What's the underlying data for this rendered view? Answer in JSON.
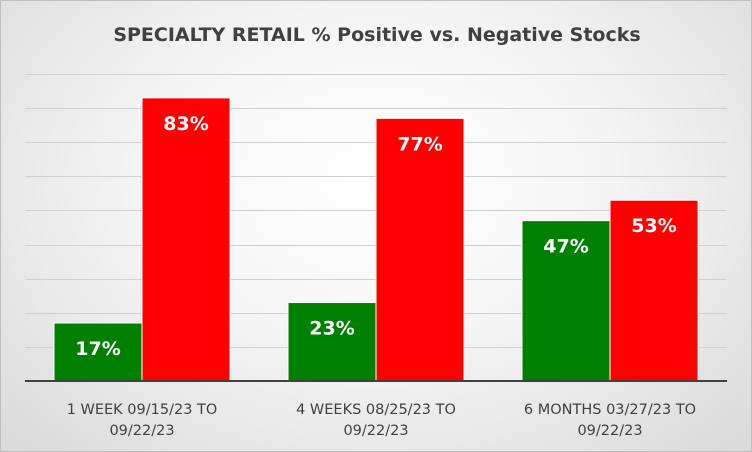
{
  "chart_data": {
    "type": "bar",
    "title": "SPECIALTY RETAIL % Positive vs. Negative Stocks",
    "xlabel": "",
    "ylabel": "",
    "categories": [
      [
        "1 WEEK 09/15/23 TO",
        "09/22/23"
      ],
      [
        "4 WEEKS 08/25/23 TO",
        "09/22/23"
      ],
      [
        "6 MONTHS 03/27/23 TO",
        "09/22/23"
      ]
    ],
    "series": [
      {
        "values": [
          17,
          23,
          47
        ],
        "labels": [
          "17%",
          "23%",
          "47%"
        ],
        "color": "#008000"
      },
      {
        "values": [
          83,
          77,
          53
        ],
        "labels": [
          "83%",
          "77%",
          "53%"
        ],
        "color": "#ff0000"
      }
    ],
    "ylim": [
      0,
      100
    ],
    "grid": true,
    "legend": "none"
  }
}
